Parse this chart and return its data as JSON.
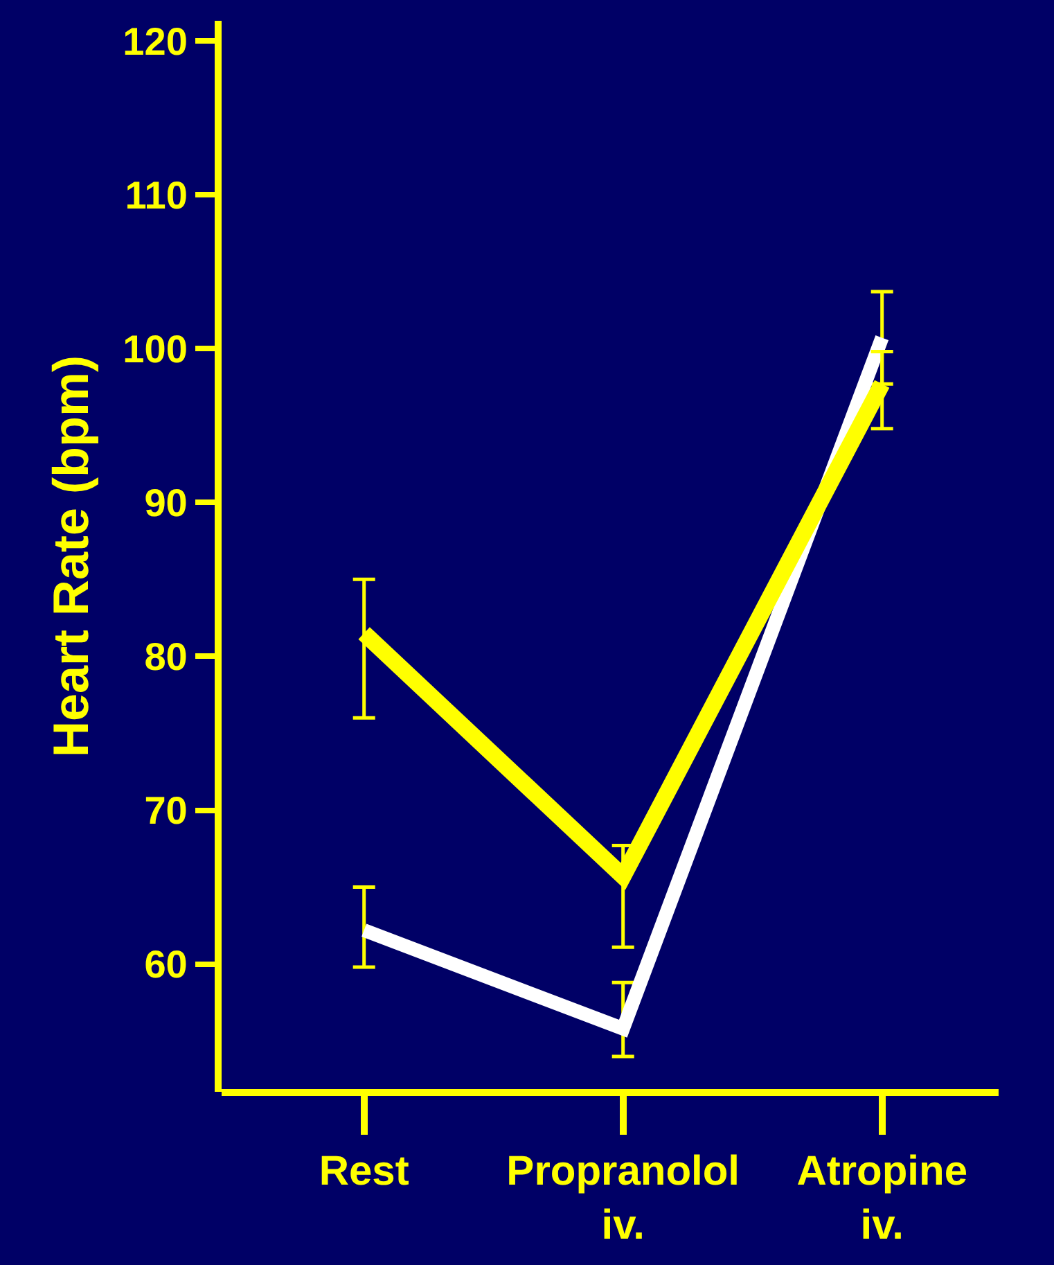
{
  "chart_data": {
    "type": "line",
    "ylabel": "Heart Rate (bpm)",
    "categories": [
      "Rest",
      "Propranolol iv.",
      "Atropine iv."
    ],
    "series": [
      {
        "color": "#ffffff",
        "values": [
          62.2,
          55.8,
          100.7
        ],
        "errors": [
          [
            59.8,
            65
          ],
          [
            54,
            58.8
          ],
          [
            97.7,
            103.7
          ]
        ]
      },
      {
        "color": "#ffff00",
        "values": [
          81.5,
          65.7,
          97.7
        ],
        "errors": [
          [
            76,
            85
          ],
          [
            61.1,
            67.7
          ],
          [
            94.8,
            99.8
          ]
        ]
      }
    ],
    "ylim": [
      51.7,
      121.3
    ],
    "yticks": [
      60,
      70,
      80,
      90,
      100,
      110,
      120
    ],
    "grid": false,
    "marker": "none",
    "line_style": "solid"
  }
}
